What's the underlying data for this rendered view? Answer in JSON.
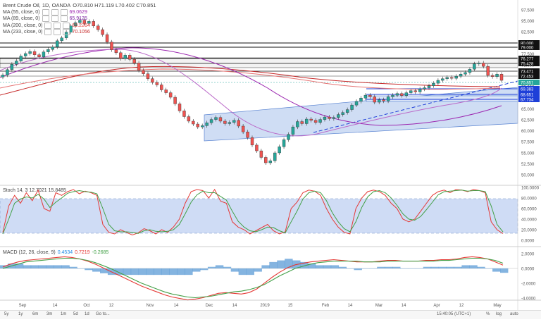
{
  "header": {
    "symbol": "Brent Crude Oil, 1D, OANDA",
    "ohlc": "O70.810  H71.119  L70.402  C70.851"
  },
  "ma_legend": [
    {
      "label": "MA (55, close, 0)",
      "value": "69.0629",
      "color": "#9c27b0"
    },
    {
      "label": "MA (89, close, 0)",
      "value": "65.9125",
      "color": "#7b1fa2"
    },
    {
      "label": "MA (200, close, 0)",
      "value": "69.2264",
      "color": "#e53935"
    },
    {
      "label": "MA (233, close, 0)",
      "value": "70.1056",
      "color": "#c62828"
    }
  ],
  "stoch_label": "Stoch  14, 3  12.7021  15.8485",
  "macd_label": "MACD (12, 26, close, 9)",
  "macd_values": [
    "0.4534",
    "0.7219",
    "-0.2685"
  ],
  "price_ticks": [
    "97.500",
    "95.000",
    "82.500",
    "80.000",
    "77.500",
    "75.000",
    "72.500",
    "70.000",
    "67.500",
    "65.000",
    "62.500",
    "60.000",
    "57.500",
    "55.000",
    "52.500",
    "50.000"
  ],
  "price_tags": [
    {
      "text": "80.000",
      "bg": "#111111",
      "fg": "#ffffff"
    },
    {
      "text": "79.000",
      "bg": "#111111",
      "fg": "#ffffff"
    },
    {
      "text": "76.277",
      "bg": "#111111",
      "fg": "#ffffff"
    },
    {
      "text": "75.428",
      "bg": "#111111",
      "fg": "#ffffff"
    },
    {
      "text": "73.471",
      "bg": "#111111",
      "fg": "#ffffff"
    },
    {
      "text": "72.453",
      "bg": "#111111",
      "fg": "#ffffff"
    },
    {
      "text": "70.851",
      "bg": "#26a69a",
      "fg": "#ffffff"
    },
    {
      "text": "69.383",
      "bg": "#1e3fd8",
      "fg": "#ffffff"
    },
    {
      "text": "68.651",
      "bg": "#1e3fd8",
      "fg": "#ffffff"
    },
    {
      "text": "67.734",
      "bg": "#1e3fd8",
      "fg": "#ffffff"
    }
  ],
  "stoch_ticks": [
    "100.0000",
    "80.0000",
    "60.0000",
    "40.0000",
    "20.0000",
    "0.0000"
  ],
  "macd_ticks": [
    "2.0000",
    "0.0000",
    "-2.0000",
    "-4.0000"
  ],
  "x_ticks": [
    "Sep",
    "14",
    "Oct",
    "12",
    "Nov",
    "14",
    "Dec",
    "14",
    "2019",
    "15",
    "Feb",
    "14",
    "Mar",
    "14",
    "Apr",
    "12",
    "May"
  ],
  "footer": {
    "ranges": [
      "5y",
      "1y",
      "6m",
      "3m",
      "1m",
      "5d",
      "1d",
      "Go to..."
    ],
    "time": "15:40:05 (UTC+1)",
    "right": [
      "%",
      "log",
      "auto"
    ]
  },
  "chart_data": [
    {
      "type": "candlestick",
      "title": "Brent Crude Oil, 1D, OANDA",
      "ylim": [
        48,
        88
      ],
      "series": [
        {
          "name": "Brent Crude Oil",
          "close": [
            72.2,
            73.5,
            74.8,
            75.6,
            76.8,
            77.4,
            77.9,
            77.1,
            76.6,
            77.8,
            78.4,
            79.0,
            80.5,
            81.2,
            82.6,
            84.1,
            84.9,
            85.5,
            84.7,
            85.2,
            84.1,
            83.2,
            82.0,
            80.2,
            78.3,
            77.6,
            76.2,
            77.0,
            76.0,
            75.1,
            73.3,
            72.5,
            71.3,
            70.4,
            69.8,
            68.6,
            67.9,
            66.8,
            65.2,
            63.5,
            62.1,
            61.0,
            60.3,
            59.6,
            59.9,
            60.6,
            61.4,
            61.9,
            61.0,
            60.4,
            60.7,
            61.2,
            59.8,
            58.4,
            57.0,
            55.2,
            53.8,
            52.2,
            50.9,
            51.4,
            53.3,
            54.8,
            56.5,
            57.8,
            59.6,
            60.9,
            60.4,
            61.5,
            61.2,
            60.7,
            61.4,
            62.0,
            61.6,
            61.9,
            62.6,
            63.1,
            63.8,
            64.9,
            65.8,
            66.6,
            67.3,
            66.9,
            65.6,
            66.2,
            65.9,
            66.9,
            67.3,
            67.7,
            67.2,
            67.9,
            68.4,
            68.1,
            68.8,
            69.1,
            69.6,
            70.2,
            70.9,
            71.3,
            71.6,
            71.4,
            71.9,
            72.4,
            72.8,
            73.6,
            74.9,
            75.1,
            74.3,
            72.1,
            71.8,
            72.4,
            70.9
          ]
        }
      ]
    },
    {
      "type": "line",
      "title": "Stoch  14, 3",
      "ylim": [
        0,
        100
      ],
      "series": [
        {
          "name": "%K",
          "values": [
            15,
            65,
            85,
            70,
            90,
            75,
            95,
            60,
            55,
            90,
            85,
            92,
            96,
            88,
            93,
            90,
            85,
            30,
            15,
            12,
            20,
            15,
            10,
            14,
            22,
            18,
            12,
            20,
            15,
            25,
            40,
            70,
            92,
            96,
            94,
            80,
            96,
            74,
            70,
            35,
            25,
            20,
            12,
            18,
            24,
            30,
            18,
            12,
            16,
            60,
            72,
            90,
            95,
            93,
            85,
            60,
            40,
            25,
            15,
            12,
            60,
            80,
            92,
            95,
            92,
            85,
            70,
            60,
            40,
            35,
            40,
            55,
            70,
            85,
            92,
            95,
            90,
            96,
            95,
            92,
            96,
            94,
            90,
            35,
            20,
            12.7
          ]
        },
        {
          "name": "%D",
          "values": [
            12,
            40,
            70,
            78,
            82,
            80,
            87,
            78,
            62,
            72,
            80,
            89,
            92,
            94,
            92,
            91,
            88,
            60,
            30,
            18,
            16,
            16,
            15,
            13,
            18,
            20,
            17,
            16,
            17,
            20,
            30,
            50,
            72,
            86,
            93,
            90,
            90,
            83,
            76,
            55,
            36,
            25,
            18,
            16,
            20,
            25,
            24,
            18,
            14,
            35,
            55,
            78,
            90,
            93,
            90,
            75,
            52,
            35,
            22,
            16,
            35,
            62,
            82,
            92,
            94,
            90,
            80,
            66,
            50,
            40,
            38,
            45,
            58,
            72,
            86,
            92,
            93,
            94,
            95,
            93,
            94,
            94,
            92,
            65,
            30,
            15.8
          ]
        }
      ]
    },
    {
      "type": "line",
      "title": "MACD (12, 26, close, 9)",
      "ylim": [
        -4.6,
        2.6
      ],
      "series": [
        {
          "name": "MACD",
          "values": [
            0.2,
            0.6,
            0.9,
            1.1,
            1.2,
            1.3,
            1.4,
            1.5,
            1.6,
            1.5,
            1.3,
            1.0,
            0.6,
            0.1,
            -0.4,
            -0.9,
            -1.4,
            -1.9,
            -2.4,
            -2.8,
            -3.2,
            -3.6,
            -3.9,
            -4.1,
            -4.3,
            -4.2,
            -4.0,
            -3.7,
            -3.4,
            -3.3,
            -3.4,
            -3.5,
            -3.3,
            -2.8,
            -2.0,
            -1.2,
            -0.5,
            0.1,
            0.5,
            0.7,
            0.9,
            1.0,
            1.1,
            1.2,
            1.1,
            1.0,
            0.9,
            0.9,
            0.9,
            1.0,
            1.1,
            1.1,
            1.0,
            1.0,
            1.0,
            1.1,
            1.1,
            1.2,
            1.2,
            1.3,
            1.5,
            1.6,
            1.5,
            1.3,
            0.9,
            0.45
          ]
        },
        {
          "name": "Signal",
          "values": [
            0.0,
            0.3,
            0.6,
            0.9,
            1.0,
            1.1,
            1.2,
            1.3,
            1.4,
            1.4,
            1.3,
            1.1,
            0.8,
            0.4,
            0.0,
            -0.5,
            -1.0,
            -1.5,
            -2.0,
            -2.4,
            -2.8,
            -3.2,
            -3.5,
            -3.7,
            -3.9,
            -4.0,
            -3.9,
            -3.8,
            -3.6,
            -3.4,
            -3.2,
            -3.1,
            -2.9,
            -2.6,
            -2.2,
            -1.6,
            -1.0,
            -0.5,
            0.0,
            0.3,
            0.6,
            0.8,
            0.9,
            1.0,
            1.0,
            1.0,
            1.0,
            0.9,
            0.9,
            0.9,
            1.0,
            1.0,
            1.0,
            1.0,
            1.0,
            1.0,
            1.0,
            1.1,
            1.1,
            1.2,
            1.3,
            1.4,
            1.4,
            1.3,
            1.1,
            0.72
          ]
        }
      ]
    }
  ]
}
